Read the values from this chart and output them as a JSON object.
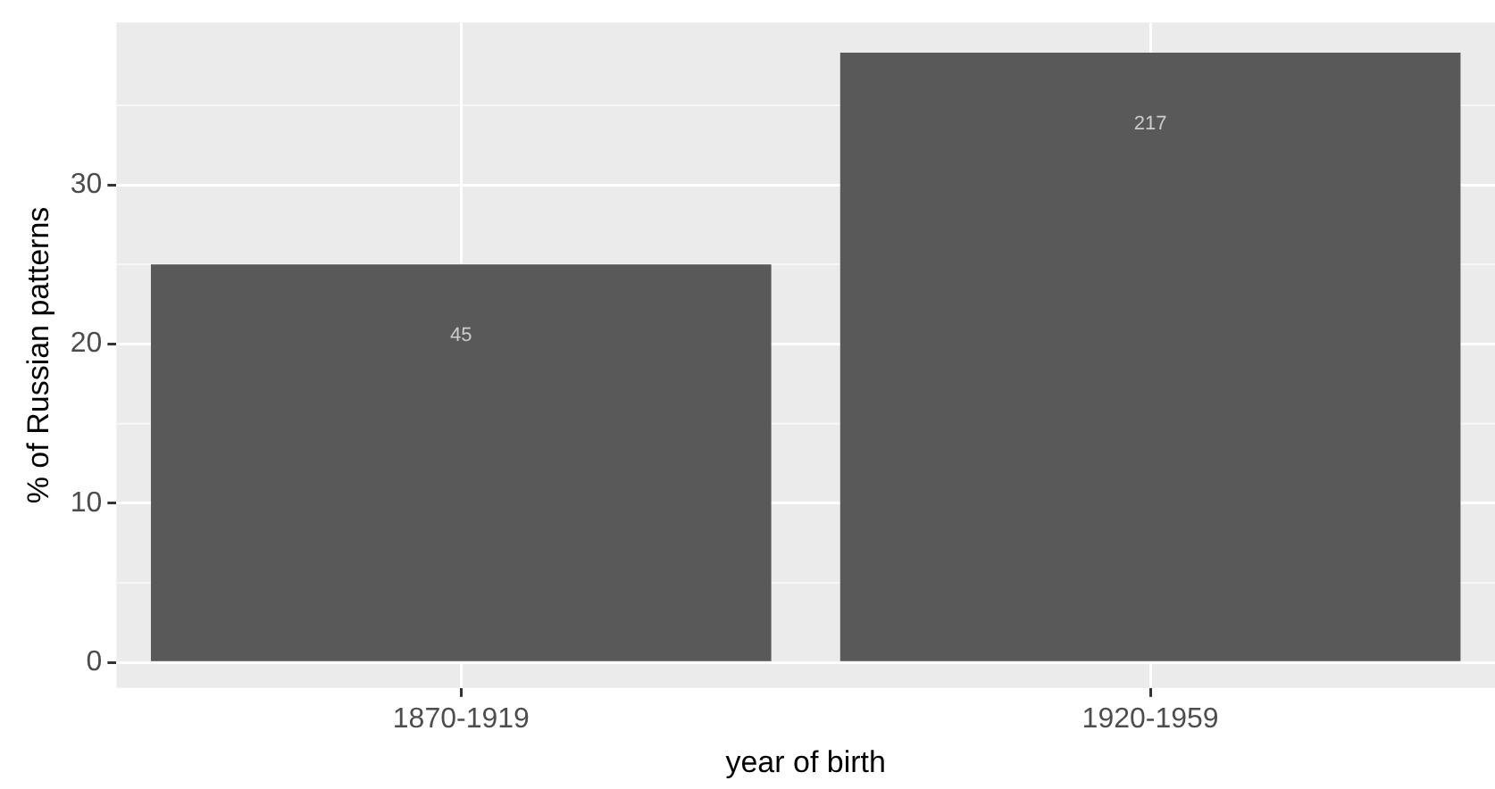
{
  "chart_data": {
    "type": "bar",
    "xlabel": "year of birth",
    "ylabel": "% of Russian patterns",
    "categories": [
      "1870-1919",
      "1920-1959"
    ],
    "values": [
      25,
      38.3
    ],
    "color": "#595959",
    "ylim": [
      -1.6,
      40.2
    ],
    "yticks": [
      0,
      10,
      20,
      30
    ],
    "grid": true,
    "legend": false,
    "annotations": [
      "45",
      "217"
    ]
  }
}
